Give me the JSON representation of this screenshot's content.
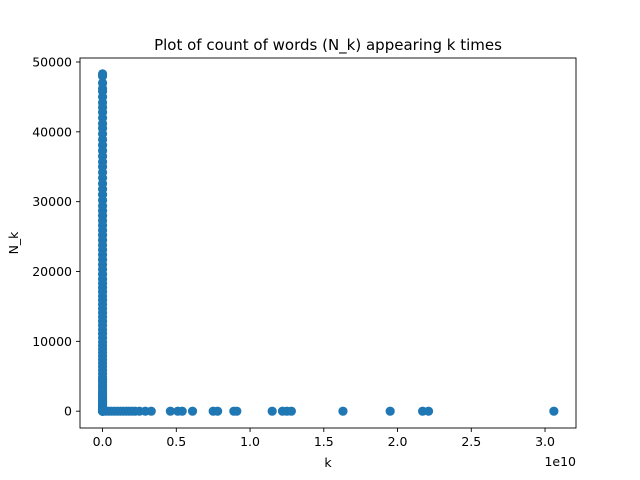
{
  "chart_data": {
    "type": "scatter",
    "title": "Plot of count of words (N_k) appearing k times",
    "xlabel": "k",
    "ylabel": "N_k",
    "x_offset_label": "1e10",
    "xlim": [
      -1530000000.0,
      32100000000.0
    ],
    "ylim": [
      -2407,
      50571
    ],
    "xticks": [
      0,
      5000000000.0,
      10000000000.0,
      15000000000.0,
      20000000000.0,
      25000000000.0,
      30000000000.0
    ],
    "xtick_labels": [
      "0.0",
      "0.5",
      "1.0",
      "1.5",
      "2.0",
      "2.5",
      "3.0"
    ],
    "yticks": [
      0,
      10000,
      20000,
      30000,
      40000,
      50000
    ],
    "ytick_labels": [
      "0",
      "10000",
      "20000",
      "30000",
      "40000",
      "50000"
    ],
    "grid": false,
    "legend": "none",
    "color": "#1f77b4",
    "series": [
      {
        "x": [
          0,
          0,
          0,
          0,
          0,
          0,
          0,
          0,
          0,
          0,
          0,
          0,
          0,
          0,
          0,
          0,
          0,
          0,
          0,
          0,
          0,
          0,
          0,
          0,
          0,
          0,
          0,
          0,
          0,
          0,
          0,
          0,
          0,
          0,
          0,
          0,
          0,
          0,
          0,
          0,
          0,
          0,
          0,
          0,
          0,
          0,
          0,
          0,
          0,
          0,
          0,
          0,
          0,
          0,
          0,
          0,
          0,
          0,
          0,
          0,
          0,
          0,
          0,
          0,
          0,
          0,
          0,
          0,
          0,
          0,
          0,
          0,
          0,
          0,
          0,
          0,
          0,
          0,
          0,
          0,
          0,
          0,
          0,
          0,
          0,
          0,
          0,
          0,
          0,
          0,
          0,
          0,
          0,
          0,
          0,
          0,
          200000000.0,
          400000000.0,
          600000000.0,
          800000000.0,
          1000000000.0,
          1200000000.0,
          1400000000.0,
          1600000000.0,
          1800000000.0,
          2000000000.0,
          2200000000.0,
          2500000000.0,
          2900000000.0,
          3300000000.0,
          4600000000.0,
          5100000000.0,
          5400000000.0,
          6100000000.0,
          7500000000.0,
          7800000000.0,
          8900000000.0,
          9100000000.0,
          11500000000.0,
          12200000000.0,
          12500000000.0,
          12800000000.0,
          16300000000.0,
          19500000000.0,
          21700000000.0,
          22100000000.0,
          30600000000.0
        ],
        "y": [
          48300,
          48000,
          47000,
          46200,
          45800,
          45000,
          44200,
          43500,
          42800,
          42000,
          41200,
          40500,
          39700,
          38900,
          38100,
          37300,
          36500,
          35700,
          35000,
          34200,
          33400,
          32600,
          31800,
          31000,
          30200,
          29400,
          28700,
          28000,
          27300,
          26600,
          25900,
          25200,
          24500,
          23800,
          23100,
          22400,
          21700,
          21000,
          20300,
          19600,
          18900,
          18300,
          17700,
          17100,
          16500,
          15900,
          15300,
          14700,
          14100,
          13500,
          12900,
          12300,
          11700,
          11100,
          10500,
          9900,
          9400,
          8900,
          8400,
          7900,
          7400,
          6900,
          6400,
          5900,
          5400,
          4900,
          4500,
          4100,
          3700,
          3300,
          2900,
          2600,
          2300,
          2000,
          1700,
          1500,
          1300,
          1100,
          900,
          750,
          600,
          480,
          380,
          300,
          230,
          170,
          120,
          80,
          50,
          30,
          20,
          10,
          5,
          2,
          1,
          0,
          0,
          0,
          0,
          0,
          0,
          0,
          0,
          0,
          0,
          0,
          0,
          0,
          0,
          0,
          0,
          0,
          0,
          0,
          0,
          0,
          0,
          0,
          0,
          0,
          0,
          0,
          0,
          0,
          0,
          0,
          0
        ]
      }
    ]
  }
}
